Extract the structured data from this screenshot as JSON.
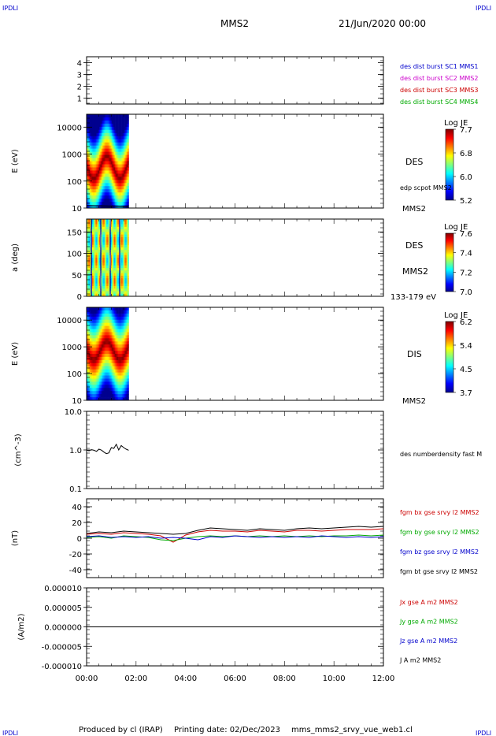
{
  "header": {
    "corner_tl": "IPDLI",
    "corner_tr": "IPDLI",
    "corner_bl": "IPDLI",
    "corner_br": "IPDLI",
    "spacecraft": "MMS2",
    "datetime": "21/Jun/2020 00:00"
  },
  "footer": {
    "produced_by": "Produced by cl (IRAP)",
    "printing_date": "Printing date: 02/Dec/2023",
    "filename": "mms_mms2_srvy_vue_web1.cl"
  },
  "colors": {
    "blue": "#0000cc",
    "magenta": "#cc00cc",
    "red": "#cc0000",
    "green": "#00aa00",
    "black": "#000000"
  },
  "chart_data": [
    {
      "type": "line",
      "id": "burst",
      "yticks": [
        "1",
        "2",
        "3",
        "4"
      ],
      "ylim": [
        0.5,
        4.5
      ],
      "legend": [
        {
          "label": "des dist burst SC1 MMS1",
          "color": "#0000cc"
        },
        {
          "label": "des dist burst SC2 MMS2",
          "color": "#cc00cc"
        },
        {
          "label": "des dist burst SC3 MMS3",
          "color": "#cc0000"
        },
        {
          "label": "des dist burst SC4 MMS4",
          "color": "#00aa00"
        }
      ],
      "series": []
    },
    {
      "type": "heatmap",
      "id": "des_energy",
      "ylabel": "E (eV)",
      "yscale": "log",
      "yticks": [
        "10",
        "100",
        "1000",
        "10000"
      ],
      "ylim": [
        10,
        30000
      ],
      "x_extent_hours": [
        0,
        1.7
      ],
      "right_labels": [
        "DES",
        "edp scpot MMS2",
        "MMS2"
      ],
      "colorbar": {
        "title": "Log JE",
        "ticks": [
          "7.7",
          "6.8",
          "6.0",
          "5.2"
        ],
        "range": [
          5.2,
          7.7
        ]
      }
    },
    {
      "type": "heatmap",
      "id": "des_pitch",
      "ylabel": "a (deg)",
      "yticks": [
        "0",
        "50",
        "100",
        "150"
      ],
      "ylim": [
        0,
        180
      ],
      "x_extent_hours": [
        0,
        1.7
      ],
      "right_labels": [
        "DES",
        "MMS2",
        "133-179 eV"
      ],
      "colorbar": {
        "title": "Log JE",
        "ticks": [
          "7.6",
          "7.4",
          "7.2",
          "7.0"
        ],
        "range": [
          7.0,
          7.6
        ]
      }
    },
    {
      "type": "heatmap",
      "id": "dis_energy",
      "ylabel": "E (eV)",
      "yscale": "log",
      "yticks": [
        "10",
        "100",
        "1000",
        "10000"
      ],
      "ylim": [
        10,
        30000
      ],
      "x_extent_hours": [
        0,
        1.7
      ],
      "right_labels": [
        "DIS",
        "MMS2"
      ],
      "colorbar": {
        "title": "Log JE",
        "ticks": [
          "6.2",
          "5.4",
          "4.5",
          "3.7"
        ],
        "range": [
          3.7,
          6.2
        ]
      }
    },
    {
      "type": "line",
      "id": "density",
      "ylabel": "(cm^-3)",
      "yscale": "log",
      "yticks": [
        "0.1",
        "1.0",
        "10.0"
      ],
      "ylim": [
        0.1,
        10
      ],
      "legend": [
        {
          "label": "des numberdensity fast M",
          "color": "#000000"
        }
      ],
      "series": [
        {
          "name": "des numberdensity fast",
          "x": [
            0,
            0.1,
            0.2,
            0.3,
            0.4,
            0.5,
            0.6,
            0.7,
            0.8,
            0.9,
            1.0,
            1.1,
            1.2,
            1.3,
            1.4,
            1.5,
            1.6,
            1.7
          ],
          "y": [
            1.0,
            0.95,
            1.02,
            0.98,
            0.92,
            1.05,
            0.99,
            0.88,
            0.8,
            0.84,
            1.15,
            1.1,
            1.4,
            1.0,
            1.3,
            1.15,
            1.05,
            0.98
          ]
        }
      ]
    },
    {
      "type": "line",
      "id": "bfield",
      "ylabel": "(nT)",
      "yticks": [
        "-40",
        "-20",
        "0",
        "20",
        "40"
      ],
      "ylim": [
        -50,
        50
      ],
      "legend": [
        {
          "label": "fgm bx gse srvy l2 MMS2",
          "color": "#cc0000"
        },
        {
          "label": "fgm by gse srvy l2 MMS2",
          "color": "#00aa00"
        },
        {
          "label": "fgm bz gse srvy l2 MMS2",
          "color": "#0000cc"
        },
        {
          "label": "fgm bt gse srvy l2 MMS2",
          "color": "#000000"
        }
      ],
      "series": [
        {
          "name": "bt",
          "color": "#000000",
          "x": [
            0,
            0.5,
            1.0,
            1.5,
            2.0,
            2.5,
            3.0,
            3.5,
            4.0,
            4.5,
            5.0,
            5.5,
            6.0,
            6.5,
            7.0,
            7.5,
            8.0,
            8.5,
            9.0,
            9.5,
            10.0,
            10.5,
            11.0,
            11.5,
            12.0
          ],
          "y": [
            6,
            8,
            7,
            9,
            8,
            7,
            6,
            5,
            6,
            10,
            13,
            12,
            11,
            10,
            12,
            11,
            10,
            12,
            13,
            12,
            13,
            14,
            15,
            14,
            15
          ]
        },
        {
          "name": "bx",
          "color": "#cc0000",
          "x": [
            0,
            0.5,
            1.0,
            1.5,
            2.0,
            2.5,
            3.0,
            3.5,
            4.0,
            4.5,
            5.0,
            5.5,
            6.0,
            6.5,
            7.0,
            7.5,
            8.0,
            8.5,
            9.0,
            9.5,
            10.0,
            10.5,
            11.0,
            11.5,
            12.0
          ],
          "y": [
            5,
            6,
            5,
            7,
            6,
            5,
            3,
            -5,
            4,
            8,
            10,
            9,
            9,
            8,
            10,
            9,
            8,
            10,
            10,
            9,
            10,
            11,
            11,
            11,
            12
          ]
        },
        {
          "name": "by",
          "color": "#00aa00",
          "x": [
            0,
            0.5,
            1.0,
            1.5,
            2.0,
            2.5,
            3.0,
            3.5,
            4.0,
            4.5,
            5.0,
            5.5,
            6.0,
            6.5,
            7.0,
            7.5,
            8.0,
            8.5,
            9.0,
            9.5,
            10.0,
            10.5,
            11.0,
            11.5,
            12.0
          ],
          "y": [
            1,
            2,
            0,
            3,
            2,
            1,
            -2,
            -3,
            0,
            2,
            3,
            2,
            3,
            2,
            3,
            2,
            3,
            2,
            3,
            2,
            3,
            3,
            4,
            3,
            4
          ]
        },
        {
          "name": "bz",
          "color": "#0000cc",
          "x": [
            0,
            0.5,
            1.0,
            1.5,
            2.0,
            2.5,
            3.0,
            3.5,
            4.0,
            4.5,
            5.0,
            5.5,
            6.0,
            6.5,
            7.0,
            7.5,
            8.0,
            8.5,
            9.0,
            9.5,
            10.0,
            10.5,
            11.0,
            11.5,
            12.0
          ],
          "y": [
            2,
            3,
            1,
            2,
            1,
            2,
            0,
            1,
            0,
            -2,
            2,
            1,
            3,
            2,
            1,
            2,
            1,
            2,
            1,
            3,
            2,
            1,
            2,
            1,
            2
          ]
        }
      ]
    },
    {
      "type": "line",
      "id": "current",
      "ylabel": "(A/m2)",
      "yticks": [
        "-0.000010",
        "-0.000005",
        "0.000000",
        "0.000005",
        "0.000010"
      ],
      "ylim": [
        -1e-05,
        1e-05
      ],
      "legend": [
        {
          "label": "Jx gse A m2 MMS2",
          "color": "#cc0000"
        },
        {
          "label": "Jy gse A m2 MMS2",
          "color": "#00aa00"
        },
        {
          "label": "Jz gse A m2 MMS2",
          "color": "#0000cc"
        },
        {
          "label": "J A m2 MMS2",
          "color": "#000000"
        }
      ],
      "series": [
        {
          "name": "J",
          "color": "#000000",
          "x": [
            0,
            1,
            2,
            3,
            4,
            5,
            6,
            7,
            8,
            9,
            10,
            11,
            12
          ],
          "y": [
            0,
            0,
            0,
            0,
            0,
            0,
            0,
            0,
            0,
            0,
            0,
            0,
            0
          ]
        }
      ]
    }
  ],
  "xaxis": {
    "ticks": [
      "00:00",
      "02:00",
      "04:00",
      "06:00",
      "08:00",
      "10:00",
      "12:00"
    ],
    "range_hours": [
      0,
      12
    ]
  }
}
